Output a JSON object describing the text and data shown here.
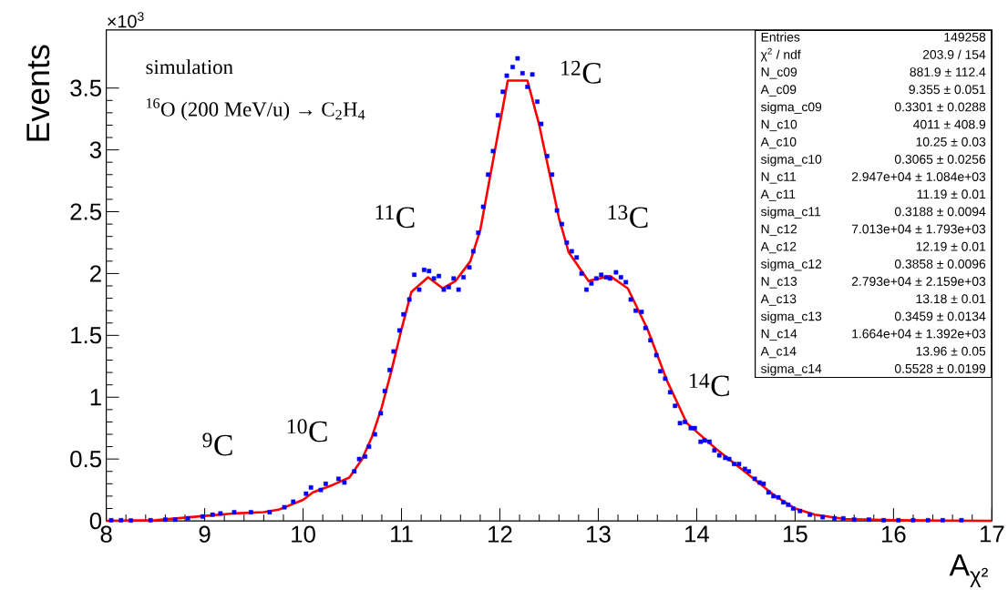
{
  "chart_data": {
    "type": "scatter",
    "xlabel": "A$_{χ²}$",
    "ylabel": "Events",
    "xlim": [
      8,
      17
    ],
    "ylim": [
      0,
      3.97
    ],
    "xticks": [
      8,
      9,
      10,
      11,
      12,
      13,
      14,
      15,
      16,
      17
    ],
    "yticks": [
      0,
      0.5,
      1,
      1.5,
      2,
      2.5,
      3,
      3.5
    ],
    "grid": false,
    "series": [
      {
        "color": "#0000ff",
        "marker": "square",
        "x": [
          8.05,
          8.15,
          8.25,
          8.45,
          8.6,
          8.7,
          8.83,
          8.98,
          9.08,
          9.16,
          9.3,
          9.47,
          9.66,
          9.81,
          9.9,
          10.03,
          10.08,
          10.18,
          10.23,
          10.36,
          10.42,
          10.52,
          10.57,
          10.63,
          10.67,
          10.73,
          10.79,
          10.83,
          10.88,
          10.92,
          10.98,
          11.02,
          11.08,
          11.13,
          11.18,
          11.23,
          11.28,
          11.33,
          11.38,
          11.43,
          11.48,
          11.53,
          11.58,
          11.63,
          11.69,
          11.73,
          11.78,
          11.83,
          11.88,
          11.93,
          11.98,
          12.03,
          12.07,
          12.13,
          12.18,
          12.23,
          12.28,
          12.33,
          12.38,
          12.42,
          12.48,
          12.53,
          12.58,
          12.63,
          12.68,
          12.73,
          12.78,
          12.83,
          12.88,
          12.93,
          12.98,
          13.03,
          13.08,
          13.12,
          13.18,
          13.23,
          13.28,
          13.33,
          13.38,
          13.44,
          13.48,
          13.53,
          13.59,
          13.63,
          13.68,
          13.73,
          13.78,
          13.83,
          13.88,
          13.94,
          13.98,
          14.04,
          14.08,
          14.13,
          14.18,
          14.23,
          14.29,
          14.33,
          14.38,
          14.43,
          14.49,
          14.53,
          14.59,
          14.64,
          14.68,
          14.73,
          14.78,
          14.83,
          14.88,
          14.93,
          14.98,
          15.05,
          15.15,
          15.28,
          15.4,
          15.49,
          15.6,
          15.75,
          15.9,
          16.05,
          16.2,
          16.35,
          16.5,
          16.69
        ],
        "values": [
          0.005,
          0.005,
          0.003,
          0.005,
          0.01,
          0.01,
          0.02,
          0.035,
          0.05,
          0.06,
          0.07,
          0.07,
          0.07,
          0.11,
          0.155,
          0.22,
          0.27,
          0.25,
          0.3,
          0.34,
          0.31,
          0.4,
          0.5,
          0.52,
          0.6,
          0.7,
          0.87,
          1.05,
          1.22,
          1.37,
          1.54,
          1.67,
          1.79,
          1.99,
          1.87,
          2.03,
          2.02,
          1.96,
          1.98,
          1.87,
          1.89,
          1.96,
          1.87,
          1.97,
          2.05,
          2.18,
          2.33,
          2.54,
          2.8,
          2.99,
          3.28,
          3.47,
          3.6,
          3.67,
          3.74,
          3.62,
          3.51,
          3.61,
          3.39,
          3.21,
          2.95,
          2.8,
          2.51,
          2.4,
          2.25,
          2.18,
          2.13,
          2.0,
          1.87,
          1.92,
          1.96,
          1.99,
          1.97,
          1.96,
          2.01,
          1.97,
          1.93,
          1.79,
          1.7,
          1.69,
          1.56,
          1.46,
          1.34,
          1.21,
          1.15,
          1.04,
          0.93,
          0.79,
          0.8,
          0.75,
          0.75,
          0.64,
          0.65,
          0.64,
          0.57,
          0.53,
          0.51,
          0.5,
          0.46,
          0.46,
          0.42,
          0.4,
          0.34,
          0.31,
          0.3,
          0.23,
          0.2,
          0.19,
          0.15,
          0.13,
          0.1,
          0.08,
          0.05,
          0.03,
          0.02,
          0.02,
          0.01,
          0.01,
          0.005,
          0.005,
          0.005,
          0.005,
          0.005,
          0.005
        ]
      },
      {
        "type": "line",
        "color": "#ff0000",
        "marker": "none",
        "x": [
          8.0,
          8.5,
          9.0,
          9.3,
          9.6,
          9.75,
          10.0,
          10.1,
          10.2,
          10.3,
          10.47,
          10.6,
          10.7,
          10.8,
          10.9,
          11.0,
          11.1,
          11.27,
          11.42,
          11.55,
          11.7,
          11.8,
          12.08,
          12.28,
          12.4,
          12.6,
          12.7,
          12.9,
          13.12,
          13.3,
          13.5,
          13.7,
          13.9,
          14.2,
          14.5,
          14.8,
          15.0,
          15.2,
          15.5,
          16.0,
          16.5,
          17.0
        ],
        "values": [
          0.0,
          0.005,
          0.04,
          0.06,
          0.07,
          0.09,
          0.17,
          0.23,
          0.26,
          0.29,
          0.35,
          0.5,
          0.68,
          0.92,
          1.22,
          1.55,
          1.85,
          1.97,
          1.88,
          1.94,
          2.1,
          2.35,
          3.56,
          3.56,
          3.2,
          2.45,
          2.17,
          1.94,
          1.98,
          1.88,
          1.55,
          1.13,
          0.79,
          0.58,
          0.39,
          0.2,
          0.1,
          0.05,
          0.015,
          0.005,
          0.002,
          0.0
        ]
      }
    ],
    "annotations": [
      "×10$^{3}$",
      "simulation",
      "$^{16}$O (200 MeV/u) → C$_{2}$H$_{4}$",
      "$^{9}$C",
      "$^{10}$C",
      "$^{11}$C",
      "$^{12}$C",
      "$^{13}$C",
      "$^{14}$C",
      "Entries",
      "149258",
      "χ$^{2}$ / ndf",
      "203.9 / 154",
      "N_c09",
      "881.9 ± 112.4",
      "A_c09",
      "9.355 ± 0.051",
      "sigma_c09",
      "0.3301 ± 0.0288",
      "N_c10",
      "4011 ± 408.9",
      "A_c10",
      "10.25 ± 0.03",
      "sigma_c10",
      "0.3065 ± 0.0256",
      "N_c11",
      "2.947e+04 ± 1.084e+03",
      "A_c11",
      "11.19 ± 0.01",
      "sigma_c11",
      "0.3188 ± 0.0094",
      "N_c12",
      "7.013e+04 ± 1.793e+03",
      "A_c12",
      "12.19 ± 0.01",
      "sigma_c12",
      "0.3858 ± 0.0096",
      "N_c13",
      "2.793e+04 ± 2.159e+03",
      "A_c13",
      "13.18 ± 0.01",
      "sigma_c13",
      "0.3459 ± 0.0134",
      "N_c14",
      "1.664e+04 ± 1.392e+03",
      "A_c14",
      "13.96 ± 0.05",
      "sigma_c14",
      "0.5528 ± 0.0199"
    ]
  }
}
